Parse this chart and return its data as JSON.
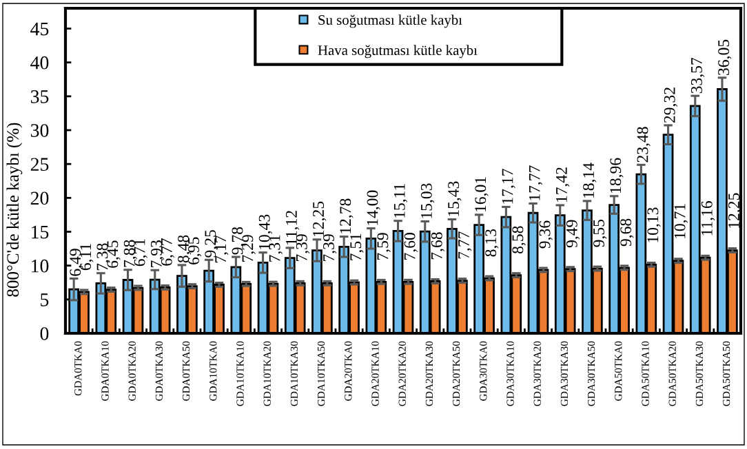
{
  "chart_data": {
    "type": "bar",
    "ylabel": "800°C'de kütle kaybı (%)",
    "categories": [
      "GDA0TKA0",
      "GDA0TKA10",
      "GDA0TKA20",
      "GDA0TKA30",
      "GDA0TKA50",
      "GDA10TKA0",
      "GDA10TKA10",
      "GDA10TKA20",
      "GDA10TKA30",
      "GDA10TKA50",
      "GDA20TKA0",
      "GDA20TKA10",
      "GDA20TKA20",
      "GDA20TKA30",
      "GDA20TKA50",
      "GDA30TKA0",
      "GDA30TKA10",
      "GDA30TKA20",
      "GDA30TKA30",
      "GDA30TKA50",
      "GDA50TKA0",
      "GDA50TKA10",
      "GDA50TKA20",
      "GDA50TKA30",
      "GDA50TKA50"
    ],
    "series": [
      {
        "name": "Su soğutması kütle kaybı",
        "color": "#6dbbea",
        "values": [
          6.49,
          7.38,
          7.88,
          7.93,
          8.48,
          9.25,
          9.78,
          10.43,
          11.12,
          12.25,
          12.78,
          14.0,
          15.11,
          15.03,
          15.43,
          16.01,
          17.17,
          17.77,
          17.42,
          18.14,
          18.96,
          23.48,
          29.32,
          33.57,
          36.05
        ],
        "errors": [
          1.6,
          1.5,
          1.5,
          1.4,
          1.6,
          1.6,
          1.5,
          1.5,
          1.5,
          1.6,
          1.5,
          1.5,
          1.5,
          1.5,
          1.4,
          1.5,
          1.5,
          1.4,
          1.5,
          1.4,
          1.3,
          1.4,
          1.4,
          1.5,
          1.7
        ],
        "value_labels": [
          "6,49",
          "7,38",
          "7,88",
          "7,93",
          "8,48",
          "9,25",
          "9,78",
          "10,43",
          "11,12",
          "12,25",
          "12,78",
          "14,00",
          "15,11",
          "15,03",
          "15,43",
          "16,01",
          "17,17",
          "17,77",
          "17,42",
          "18,14",
          "18,96",
          "23,48",
          "29,32",
          "33,57",
          "36,05"
        ]
      },
      {
        "name": "Hava soğutması kütle kaybı",
        "color": "#ed7d31",
        "values": [
          6.11,
          6.45,
          6.71,
          6.77,
          6.95,
          7.17,
          7.29,
          7.31,
          7.39,
          7.39,
          7.51,
          7.59,
          7.6,
          7.68,
          7.77,
          8.13,
          8.58,
          9.36,
          9.49,
          9.55,
          9.68,
          10.13,
          10.71,
          11.16,
          12.25
        ],
        "errors": [
          0.3,
          0.3,
          0.3,
          0.3,
          0.3,
          0.3,
          0.3,
          0.3,
          0.3,
          0.3,
          0.3,
          0.3,
          0.3,
          0.3,
          0.3,
          0.3,
          0.3,
          0.3,
          0.3,
          0.3,
          0.3,
          0.3,
          0.3,
          0.3,
          0.3
        ],
        "value_labels": [
          "6,11",
          "6,45",
          "6,71",
          "6,77",
          "6,95",
          "7,17",
          "7,29",
          "7,31",
          "7,39",
          "7,39",
          "7,51",
          "7,59",
          "7,60",
          "7,68",
          "7,77",
          "8,13",
          "8,58",
          "9,36",
          "9,49",
          "9,55",
          "9,68",
          "10,13",
          "10,71",
          "11,16",
          "12,25"
        ]
      }
    ],
    "ylim": [
      0,
      48
    ],
    "yticks": [
      0,
      5,
      10,
      15,
      20,
      25,
      30,
      35,
      40,
      45
    ],
    "legend": "top"
  }
}
